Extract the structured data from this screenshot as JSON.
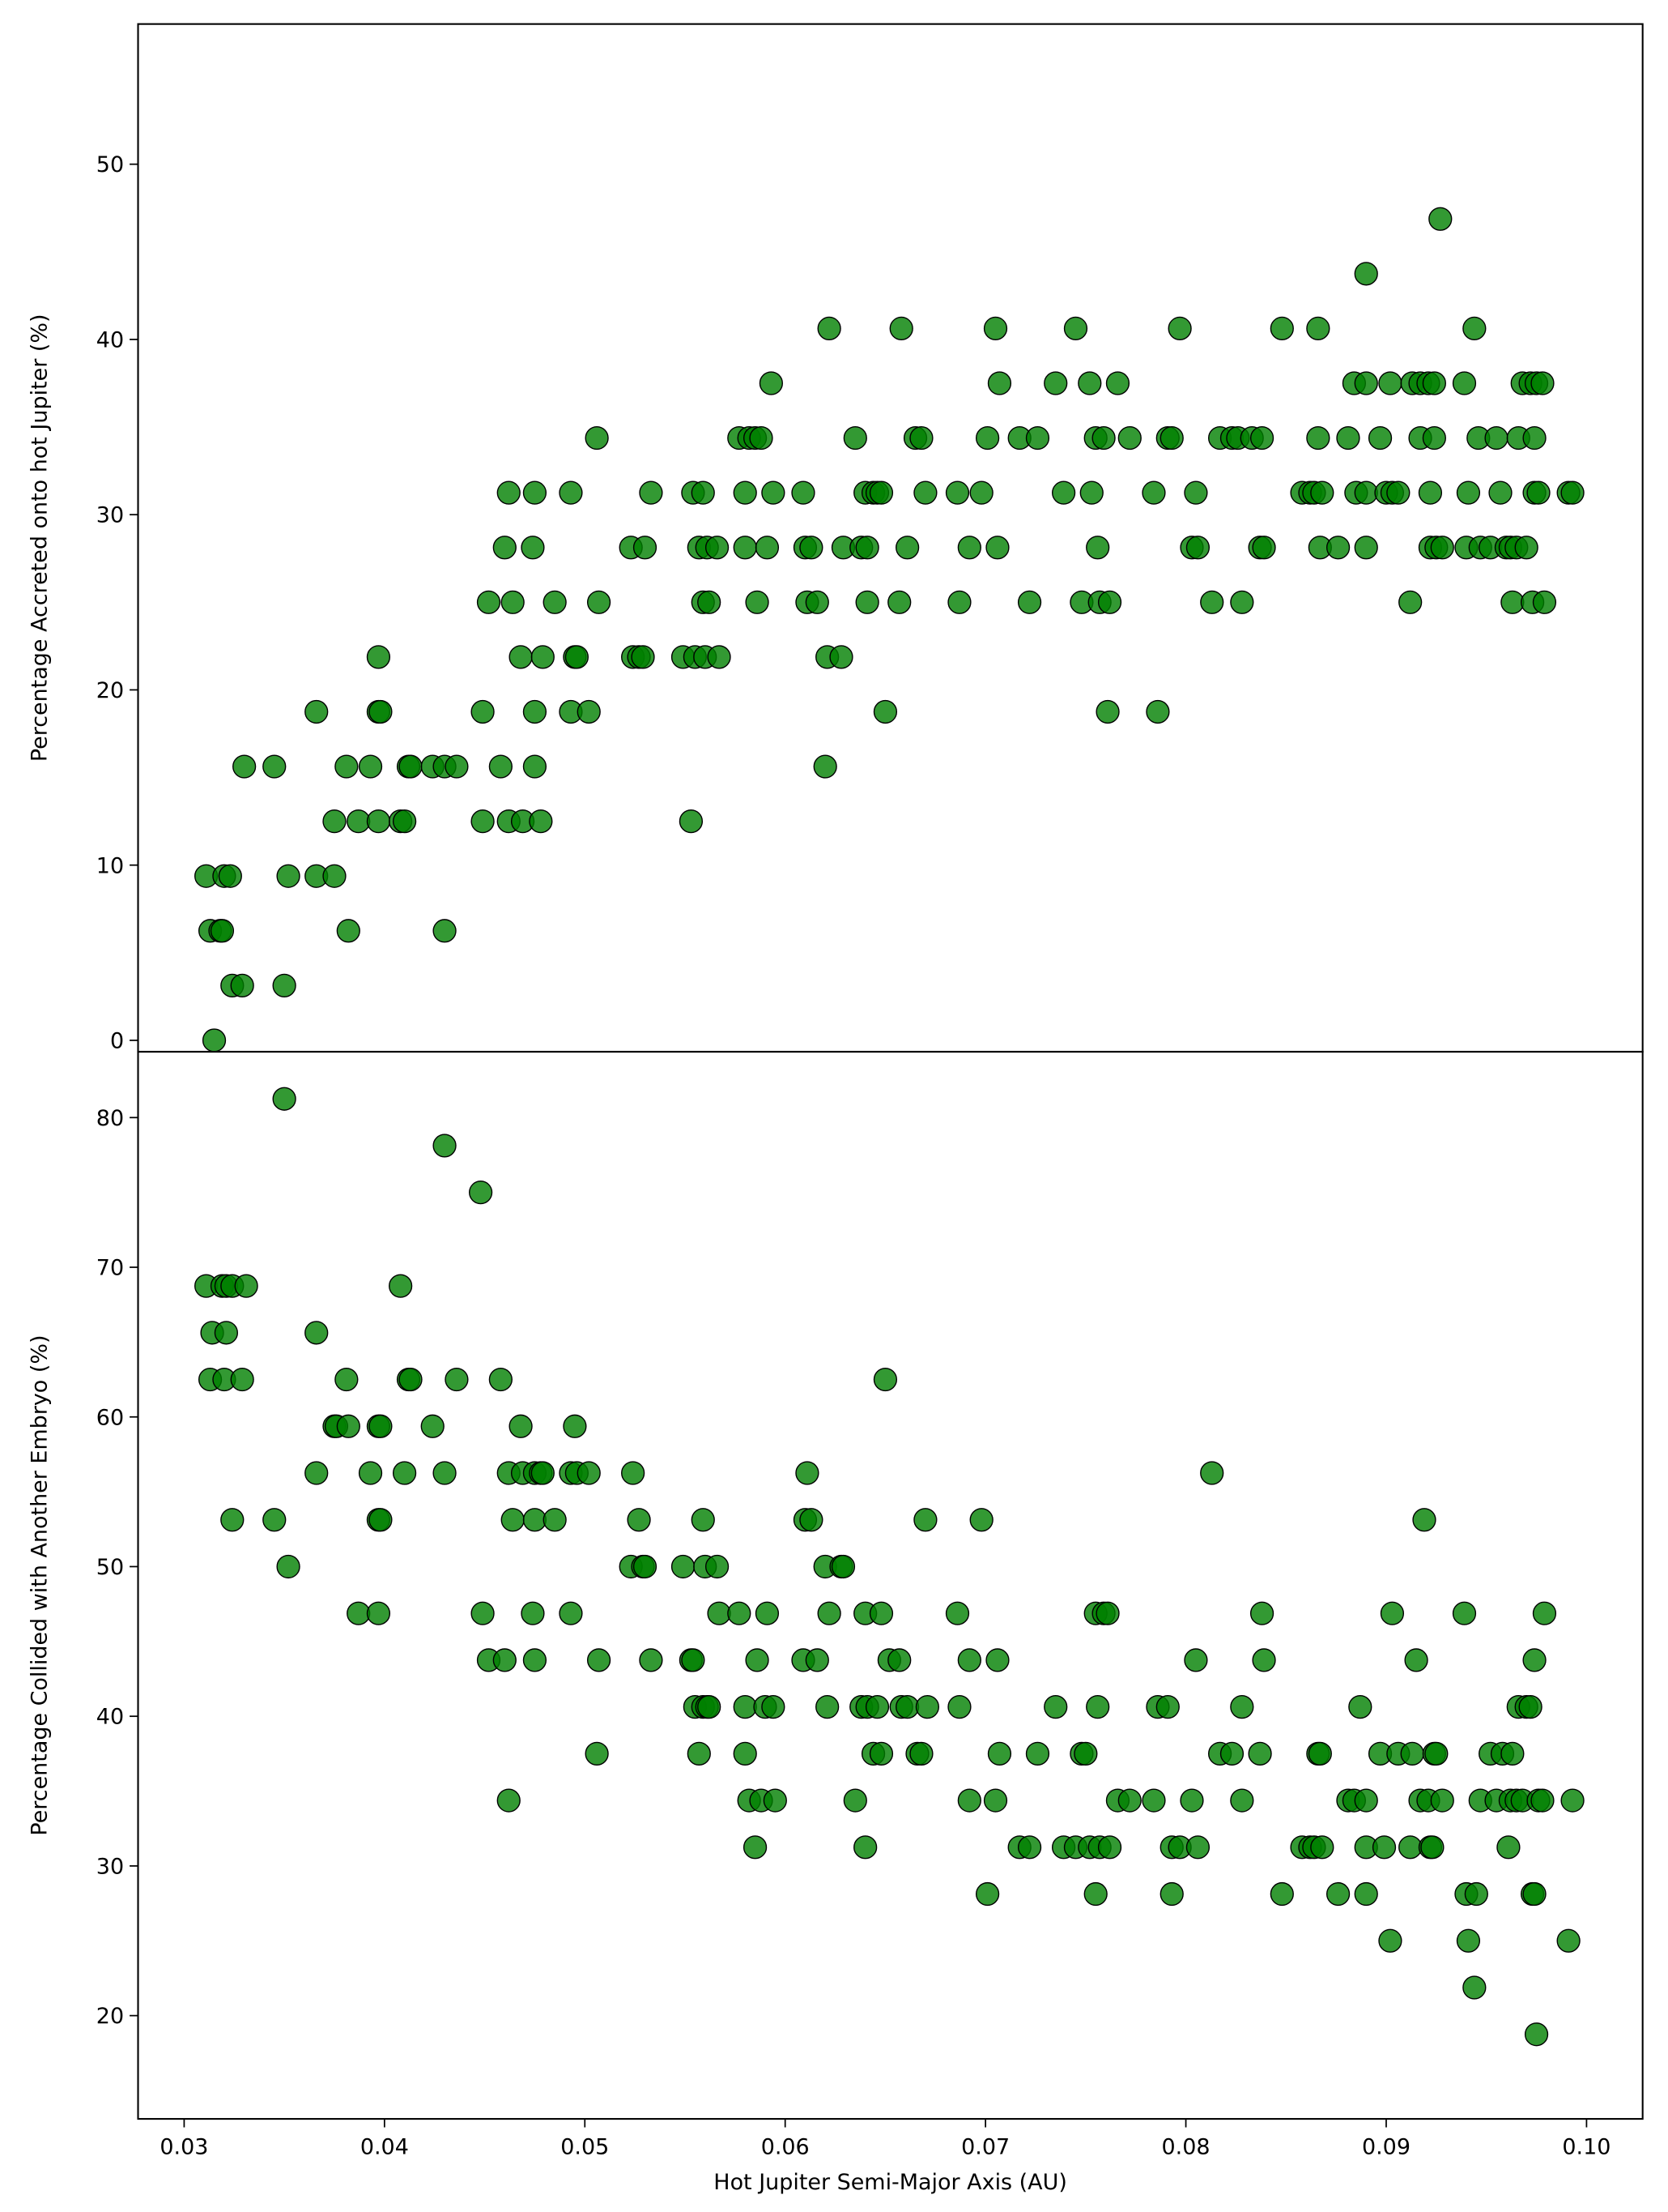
{
  "chart_data": [
    {
      "type": "scatter",
      "ylabel": "Percentage Accreted onto hot Jupiter (%)",
      "color": "#008000",
      "xlim": [
        0.0277,
        0.1028
      ],
      "ylim": [
        -0.65,
        58
      ],
      "yticks": [
        0,
        10,
        20,
        30,
        40,
        50
      ],
      "x": [
        0.0311,
        0.0313,
        0.0315,
        0.0318,
        0.0319,
        0.032,
        0.0323,
        0.0324,
        0.0329,
        0.033,
        0.0345,
        0.035,
        0.0352,
        0.0366,
        0.0366,
        0.0375,
        0.0375,
        0.0381,
        0.0382,
        0.0387,
        0.0393,
        0.0397,
        0.0397,
        0.0397,
        0.0398,
        0.0408,
        0.041,
        0.0412,
        0.0413,
        0.0424,
        0.043,
        0.043,
        0.0436,
        0.0449,
        0.0449,
        0.0452,
        0.0458,
        0.046,
        0.0462,
        0.0462,
        0.0464,
        0.0468,
        0.0469,
        0.0474,
        0.0475,
        0.0475,
        0.0475,
        0.0478,
        0.0479,
        0.0485,
        0.0493,
        0.0493,
        0.0495,
        0.0496,
        0.0502,
        0.0506,
        0.0507,
        0.0523,
        0.0524,
        0.0527,
        0.0529,
        0.053,
        0.0533,
        0.0549,
        0.0553,
        0.0554,
        0.0555,
        0.0557,
        0.0559,
        0.0559,
        0.056,
        0.0561,
        0.0562,
        0.0566,
        0.0567,
        0.0577,
        0.058,
        0.058,
        0.0582,
        0.0585,
        0.0586,
        0.0588,
        0.0591,
        0.0593,
        0.0594,
        0.0609,
        0.061,
        0.0611,
        0.0613,
        0.0616,
        0.062,
        0.0621,
        0.0622,
        0.0628,
        0.0629,
        0.0635,
        0.0638,
        0.064,
        0.0641,
        0.0641,
        0.0644,
        0.0646,
        0.0648,
        0.065,
        0.0657,
        0.0658,
        0.0661,
        0.0665,
        0.0668,
        0.067,
        0.0686,
        0.0687,
        0.0692,
        0.0698,
        0.0701,
        0.0705,
        0.0706,
        0.0707,
        0.0717,
        0.0722,
        0.0726,
        0.0735,
        0.0739,
        0.0745,
        0.0748,
        0.0752,
        0.0753,
        0.0755,
        0.0756,
        0.0757,
        0.0759,
        0.0761,
        0.0762,
        0.0766,
        0.0772,
        0.0784,
        0.0786,
        0.0791,
        0.0793,
        0.0797,
        0.0803,
        0.0805,
        0.0806,
        0.0813,
        0.0817,
        0.0823,
        0.0826,
        0.0828,
        0.0833,
        0.0837,
        0.0838,
        0.0839,
        0.0848,
        0.0858,
        0.0862,
        0.0864,
        0.0866,
        0.0866,
        0.0867,
        0.0868,
        0.0876,
        0.0881,
        0.0884,
        0.0885,
        0.089,
        0.089,
        0.089,
        0.089,
        0.0897,
        0.09,
        0.0902,
        0.0903,
        0.0906,
        0.0912,
        0.0913,
        0.0917,
        0.0917,
        0.0921,
        0.0922,
        0.0922,
        0.0924,
        0.0924,
        0.0925,
        0.0927,
        0.0928,
        0.0939,
        0.094,
        0.0941,
        0.0944,
        0.0946,
        0.0947,
        0.0952,
        0.0955,
        0.0957,
        0.096,
        0.0962,
        0.0963,
        0.0965,
        0.0966,
        0.0968,
        0.097,
        0.0972,
        0.0973,
        0.0974,
        0.0974,
        0.0975,
        0.0976,
        0.0978,
        0.0979,
        0.0991,
        0.0993
      ],
      "values": [
        9.375,
        6.25,
        0,
        6.25,
        6.25,
        9.375,
        9.375,
        3.125,
        3.125,
        15.625,
        15.625,
        3.125,
        9.375,
        18.75,
        9.375,
        12.5,
        9.375,
        15.625,
        6.25,
        12.5,
        15.625,
        21.875,
        18.75,
        12.5,
        18.75,
        12.5,
        12.5,
        15.625,
        15.625,
        15.625,
        15.625,
        6.25,
        15.625,
        18.75,
        12.5,
        25,
        15.625,
        28.125,
        31.25,
        12.5,
        25,
        21.875,
        12.5,
        28.125,
        31.25,
        18.75,
        15.625,
        12.5,
        21.875,
        25,
        31.25,
        18.75,
        21.875,
        21.875,
        18.75,
        34.375,
        25,
        28.125,
        21.875,
        21.875,
        21.875,
        28.125,
        31.25,
        21.875,
        12.5,
        31.25,
        21.875,
        28.125,
        31.25,
        25,
        21.875,
        28.125,
        25,
        28.125,
        21.875,
        34.375,
        31.25,
        28.125,
        34.375,
        34.375,
        25,
        34.375,
        28.125,
        37.5,
        31.25,
        31.25,
        28.125,
        25,
        28.125,
        25,
        15.625,
        21.875,
        40.625,
        21.875,
        28.125,
        34.375,
        28.125,
        31.25,
        25,
        28.125,
        31.25,
        31.25,
        31.25,
        18.75,
        25,
        40.625,
        28.125,
        34.375,
        34.375,
        31.25,
        31.25,
        25,
        28.125,
        31.25,
        34.375,
        40.625,
        28.125,
        37.5,
        34.375,
        25,
        34.375,
        37.5,
        31.25,
        40.625,
        25,
        37.5,
        31.25,
        34.375,
        28.125,
        25,
        34.375,
        18.75,
        25,
        37.5,
        34.375,
        31.25,
        18.75,
        34.375,
        34.375,
        40.625,
        28.125,
        31.25,
        28.125,
        25,
        34.375,
        34.375,
        34.375,
        25,
        34.375,
        28.125,
        34.375,
        28.125,
        40.625,
        31.25,
        31.25,
        31.25,
        34.375,
        40.625,
        28.125,
        31.25,
        28.125,
        34.375,
        37.5,
        31.25,
        43.75,
        37.5,
        28.125,
        31.25,
        34.375,
        31.25,
        37.5,
        31.25,
        31.25,
        25,
        37.5,
        37.5,
        34.375,
        37.5,
        28.125,
        31.25,
        37.5,
        34.375,
        28.125,
        46.875,
        28.125,
        37.5,
        28.125,
        31.25,
        40.625,
        34.375,
        28.125,
        28.125,
        34.375,
        31.25,
        28.125,
        28.125,
        25,
        28.125,
        34.375,
        37.5,
        28.125,
        37.5,
        25,
        31.25,
        34.375,
        37.5,
        31.25,
        37.5,
        25,
        31.25,
        31.25
      ]
    },
    {
      "type": "scatter",
      "ylabel": "Percentage Collided with Another Embryo (%)",
      "xlabel": "Hot Jupiter Semi-Major Axis (AU)",
      "color": "#008000",
      "xlim": [
        0.0277,
        0.1028
      ],
      "ylim": [
        13.1,
        84.4
      ],
      "yticks": [
        20,
        30,
        40,
        50,
        60,
        70,
        80
      ],
      "xticks": [
        0.03,
        0.04,
        0.05,
        0.06,
        0.07,
        0.08,
        0.09,
        {
          "value": 0.1,
          "label": "0.10"
        }
      ],
      "x": [
        0.0311,
        0.0313,
        0.0314,
        0.0319,
        0.032,
        0.0321,
        0.0321,
        0.0324,
        0.0324,
        0.0329,
        0.0331,
        0.0345,
        0.035,
        0.0352,
        0.0366,
        0.0366,
        0.0375,
        0.0376,
        0.0381,
        0.0382,
        0.0387,
        0.0393,
        0.0397,
        0.0397,
        0.0397,
        0.0398,
        0.0398,
        0.0408,
        0.041,
        0.0412,
        0.0413,
        0.0424,
        0.043,
        0.043,
        0.0436,
        0.0448,
        0.0449,
        0.0452,
        0.0458,
        0.046,
        0.0462,
        0.0462,
        0.0464,
        0.0468,
        0.0469,
        0.0474,
        0.0475,
        0.0475,
        0.0475,
        0.0478,
        0.0479,
        0.0485,
        0.0493,
        0.0493,
        0.0495,
        0.0496,
        0.0502,
        0.0506,
        0.0507,
        0.0523,
        0.0524,
        0.0527,
        0.0529,
        0.053,
        0.0533,
        0.0549,
        0.0553,
        0.0554,
        0.0555,
        0.0557,
        0.0559,
        0.0559,
        0.056,
        0.0561,
        0.0562,
        0.0566,
        0.0567,
        0.0577,
        0.058,
        0.058,
        0.0582,
        0.0585,
        0.0586,
        0.0588,
        0.0591,
        0.059,
        0.0594,
        0.0595,
        0.0609,
        0.061,
        0.0611,
        0.0613,
        0.0616,
        0.062,
        0.0621,
        0.0622,
        0.0628,
        0.0629,
        0.0635,
        0.0638,
        0.064,
        0.064,
        0.0641,
        0.0644,
        0.0646,
        0.0648,
        0.0648,
        0.065,
        0.0652,
        0.0657,
        0.0658,
        0.0661,
        0.0666,
        0.0668,
        0.067,
        0.0671,
        0.0686,
        0.0687,
        0.0692,
        0.0692,
        0.0698,
        0.0701,
        0.0705,
        0.0706,
        0.0707,
        0.0717,
        0.0722,
        0.0726,
        0.0735,
        0.0739,
        0.0745,
        0.0748,
        0.075,
        0.0752,
        0.0755,
        0.0756,
        0.0755,
        0.0757,
        0.0759,
        0.0761,
        0.0762,
        0.0766,
        0.0772,
        0.0784,
        0.0786,
        0.0791,
        0.0793,
        0.0793,
        0.0797,
        0.0803,
        0.0805,
        0.0806,
        0.0813,
        0.0817,
        0.0823,
        0.0828,
        0.0828,
        0.0837,
        0.0838,
        0.0839,
        0.0848,
        0.0858,
        0.0862,
        0.0864,
        0.0866,
        0.0867,
        0.0868,
        0.0876,
        0.0881,
        0.0884,
        0.0887,
        0.089,
        0.089,
        0.089,
        0.0897,
        0.0899,
        0.0902,
        0.0903,
        0.0906,
        0.0912,
        0.0913,
        0.0915,
        0.0917,
        0.0919,
        0.0921,
        0.0922,
        0.0923,
        0.0924,
        0.0925,
        0.0928,
        0.0939,
        0.094,
        0.0941,
        0.0944,
        0.0945,
        0.0947,
        0.0952,
        0.0955,
        0.0958,
        0.0961,
        0.0962,
        0.0963,
        0.0965,
        0.0966,
        0.0968,
        0.097,
        0.0972,
        0.0973,
        0.0974,
        0.0974,
        0.0975,
        0.0976,
        0.0978,
        0.0979,
        0.0991,
        0.0993
      ],
      "values": [
        68.75,
        62.5,
        65.625,
        68.75,
        62.5,
        65.625,
        68.75,
        53.125,
        68.75,
        62.5,
        68.75,
        53.125,
        81.25,
        50,
        65.625,
        56.25,
        59.375,
        59.375,
        62.5,
        59.375,
        46.875,
        56.25,
        59.375,
        53.125,
        46.875,
        53.125,
        59.375,
        68.75,
        56.25,
        62.5,
        62.5,
        59.375,
        78.125,
        56.25,
        62.5,
        75,
        46.875,
        43.75,
        62.5,
        43.75,
        34.375,
        56.25,
        53.125,
        59.375,
        56.25,
        46.875,
        53.125,
        43.75,
        56.25,
        56.25,
        56.25,
        53.125,
        56.25,
        46.875,
        59.375,
        56.25,
        56.25,
        37.5,
        43.75,
        50,
        56.25,
        53.125,
        50,
        50,
        43.75,
        50,
        43.75,
        43.75,
        40.625,
        37.5,
        53.125,
        40.625,
        50,
        40.625,
        40.625,
        50,
        46.875,
        46.875,
        40.625,
        37.5,
        34.375,
        31.25,
        43.75,
        34.375,
        46.875,
        40.625,
        40.625,
        34.375,
        43.75,
        53.125,
        56.25,
        53.125,
        43.75,
        50,
        40.625,
        46.875,
        50,
        50,
        34.375,
        40.625,
        46.875,
        31.25,
        40.625,
        37.5,
        40.625,
        37.5,
        46.875,
        62.5,
        43.75,
        43.75,
        40.625,
        40.625,
        37.5,
        37.5,
        53.125,
        40.625,
        46.875,
        40.625,
        43.75,
        34.375,
        53.125,
        28.125,
        34.375,
        43.75,
        37.5,
        31.25,
        31.25,
        37.5,
        40.625,
        31.25,
        31.25,
        37.5,
        37.5,
        31.25,
        46.875,
        40.625,
        28.125,
        31.25,
        46.875,
        46.875,
        31.25,
        34.375,
        34.375,
        34.375,
        40.625,
        40.625,
        31.25,
        28.125,
        31.25,
        34.375,
        43.75,
        31.25,
        56.25,
        37.5,
        37.5,
        34.375,
        40.625,
        37.5,
        46.875,
        43.75,
        28.125,
        31.25,
        31.25,
        31.25,
        37.5,
        37.5,
        31.25,
        28.125,
        34.375,
        34.375,
        40.625,
        31.25,
        28.125,
        34.375,
        37.5,
        31.25,
        25,
        46.875,
        37.5,
        31.25,
        37.5,
        43.75,
        34.375,
        53.125,
        34.375,
        31.25,
        31.25,
        37.5,
        37.5,
        34.375,
        46.875,
        28.125,
        25,
        21.875,
        28.125,
        34.375,
        37.5,
        34.375,
        37.5,
        31.25,
        34.375,
        37.5,
        34.375,
        40.625,
        34.375,
        40.625,
        40.625,
        28.125,
        28.125,
        43.75,
        18.75,
        34.375,
        34.375,
        46.875,
        25,
        34.375
      ]
    }
  ]
}
